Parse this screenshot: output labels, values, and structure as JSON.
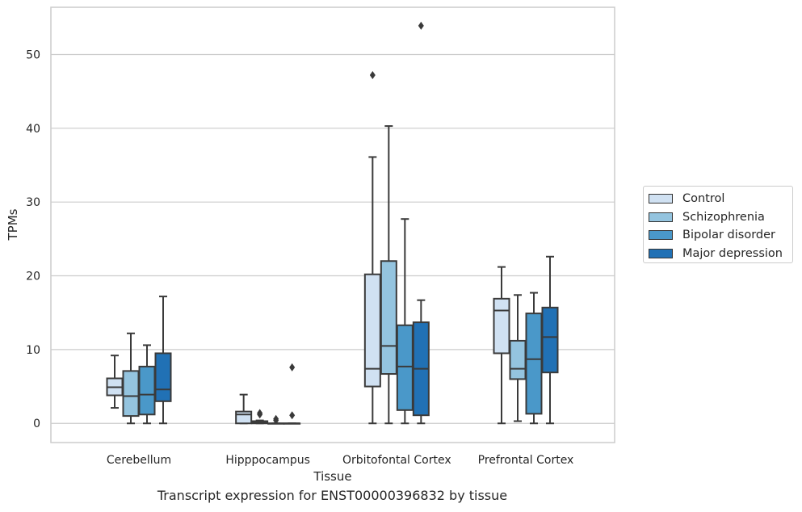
{
  "caption": "Transcript expression for ENST00000396832 by tissue",
  "chart_data": {
    "type": "box",
    "title": "",
    "xlabel": "Tissue",
    "ylabel": "TPMs",
    "ylim": [
      -2.6,
      56.4
    ],
    "yticks": [
      0,
      10,
      20,
      30,
      40,
      50
    ],
    "grid": "horizontal",
    "legend_position": "right",
    "categories": [
      "Cerebellum",
      "Hipppocampus",
      "Orbitofontal Cortex",
      "Prefrontal Cortex"
    ],
    "series": [
      {
        "name": "Control",
        "color": "#d0e1f2",
        "boxes": [
          {
            "whislo": 2.1,
            "q1": 3.8,
            "med": 4.9,
            "q3": 6.1,
            "whishi": 9.2,
            "fliers": []
          },
          {
            "whislo": 0.0,
            "q1": 0.0,
            "med": 1.2,
            "q3": 1.6,
            "whishi": 3.9,
            "fliers": []
          },
          {
            "whislo": 0.0,
            "q1": 5.0,
            "med": 7.4,
            "q3": 20.2,
            "whishi": 36.1,
            "fliers": [
              47.2
            ]
          },
          {
            "whislo": 0.0,
            "q1": 9.5,
            "med": 15.3,
            "q3": 16.9,
            "whishi": 21.2,
            "fliers": []
          }
        ]
      },
      {
        "name": "Schizophrenia",
        "color": "#94c4df",
        "boxes": [
          {
            "whislo": 0.0,
            "q1": 1.0,
            "med": 3.7,
            "q3": 7.1,
            "whishi": 12.2,
            "fliers": []
          },
          {
            "whislo": 0.0,
            "q1": 0.0,
            "med": 0.1,
            "q3": 0.3,
            "whishi": 0.4,
            "fliers": [
              1.4,
              1.2
            ]
          },
          {
            "whislo": 0.0,
            "q1": 6.7,
            "med": 10.5,
            "q3": 22.0,
            "whishi": 40.3,
            "fliers": []
          },
          {
            "whislo": 0.3,
            "q1": 6.0,
            "med": 7.4,
            "q3": 11.2,
            "whishi": 17.4,
            "fliers": []
          }
        ]
      },
      {
        "name": "Bipolar disorder",
        "color": "#4a98c9",
        "boxes": [
          {
            "whislo": 0.0,
            "q1": 1.2,
            "med": 3.9,
            "q3": 7.7,
            "whishi": 10.6,
            "fliers": []
          },
          {
            "whislo": 0.0,
            "q1": 0.0,
            "med": 0.0,
            "q3": 0.0,
            "whishi": 0.0,
            "fliers": [
              0.6,
              0.4
            ]
          },
          {
            "whislo": 0.0,
            "q1": 1.8,
            "med": 7.7,
            "q3": 13.3,
            "whishi": 27.7,
            "fliers": []
          },
          {
            "whislo": 0.0,
            "q1": 1.3,
            "med": 8.7,
            "q3": 14.9,
            "whishi": 17.7,
            "fliers": []
          }
        ]
      },
      {
        "name": "Major depression",
        "color": "#2171b5",
        "boxes": [
          {
            "whislo": 0.0,
            "q1": 3.0,
            "med": 4.6,
            "q3": 9.5,
            "whishi": 17.2,
            "fliers": []
          },
          {
            "whislo": 0.0,
            "q1": 0.0,
            "med": 0.0,
            "q3": 0.0,
            "whishi": 0.0,
            "fliers": [
              7.6,
              1.1
            ]
          },
          {
            "whislo": 0.0,
            "q1": 1.1,
            "med": 7.4,
            "q3": 13.7,
            "whishi": 16.7,
            "fliers": [
              53.9
            ]
          },
          {
            "whislo": 0.0,
            "q1": 6.9,
            "med": 11.7,
            "q3": 15.7,
            "whishi": 22.6,
            "fliers": []
          }
        ]
      }
    ]
  }
}
